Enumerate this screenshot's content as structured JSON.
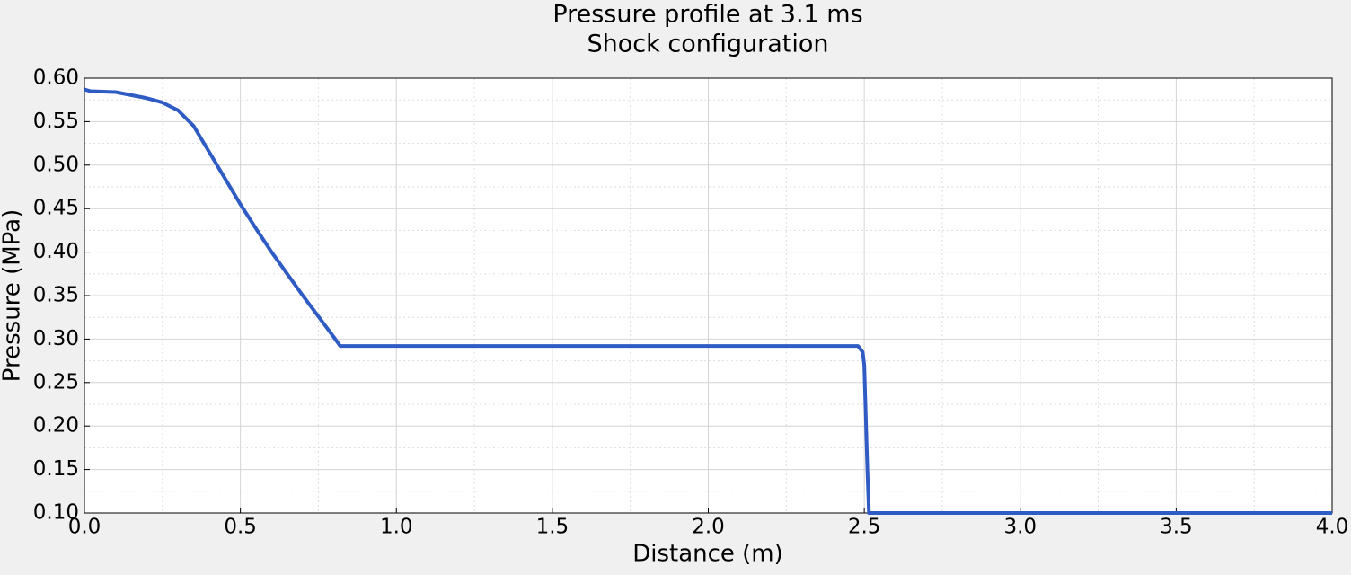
{
  "chart_data": {
    "type": "line",
    "title": "Pressure profile at 3.1 ms",
    "subtitle": "Shock configuration",
    "x_label": "Distance (m)",
    "y_label": "Pressure (MPa)",
    "x": [
      0,
      0.02,
      0.1,
      0.2,
      0.25,
      0.3,
      0.35,
      0.4,
      0.45,
      0.5,
      0.55,
      0.6,
      0.65,
      0.7,
      0.75,
      0.8,
      0.82,
      1.0,
      2.0,
      2.48,
      2.495,
      2.5,
      2.51,
      2.515,
      3.0,
      4.0
    ],
    "series": [
      {
        "color": "#2f5bc4",
        "values": [
          0.587,
          0.585,
          0.584,
          0.577,
          0.572,
          0.563,
          0.545,
          0.515,
          0.485,
          0.455,
          0.427,
          0.4,
          0.375,
          0.35,
          0.326,
          0.302,
          0.292,
          0.292,
          0.292,
          0.292,
          0.285,
          0.27,
          0.15,
          0.1,
          0.1,
          0.1
        ]
      }
    ],
    "xlim": [
      0,
      4
    ],
    "ylim": [
      0.1,
      0.6
    ],
    "xticks": [
      {
        "value": 0,
        "label": "0.0"
      },
      0.5,
      {
        "value": 1,
        "label": "1.0"
      },
      1.5,
      {
        "value": 2,
        "label": "2.0"
      },
      2.5,
      {
        "value": 3,
        "label": "3.0"
      },
      3.5,
      {
        "value": 4,
        "label": "4.0"
      }
    ],
    "yticks": [
      {
        "value": 0.1,
        "label": "0.10"
      },
      0.15,
      {
        "value": 0.2,
        "label": "0.20"
      },
      0.25,
      {
        "value": 0.3,
        "label": "0.30"
      },
      0.35,
      {
        "value": 0.4,
        "label": "0.40"
      },
      0.45,
      {
        "value": 0.5,
        "label": "0.50"
      },
      0.55,
      {
        "value": 0.6,
        "label": "0.60"
      }
    ],
    "xminorticks": [
      0.25,
      0.75,
      1.25,
      1.75,
      2.25,
      2.75,
      3.25,
      3.75
    ],
    "yminorticks": [
      0.125,
      0.175,
      0.225,
      0.275,
      0.325,
      0.375,
      0.425,
      0.475,
      0.525,
      0.575
    ],
    "grid": true
  }
}
